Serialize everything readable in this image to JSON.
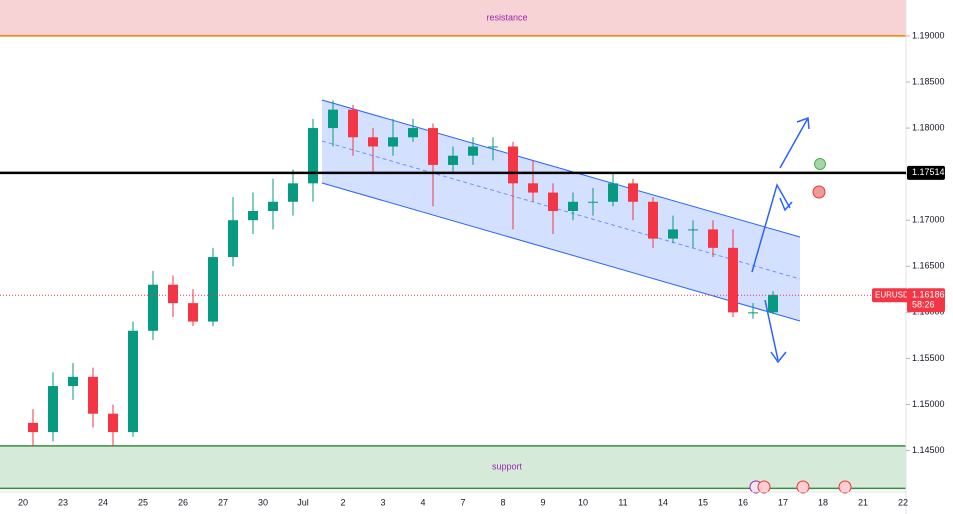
{
  "chart_data": {
    "type": "candlestick",
    "symbol": "EURUSD",
    "categories": [
      "20",
      null,
      "23",
      null,
      "24",
      null,
      "25",
      null,
      "26",
      null,
      "27",
      null,
      "30",
      null,
      "Jul",
      null,
      "2",
      null,
      "3",
      null,
      "4",
      null,
      "7",
      null,
      "8",
      null,
      "9",
      null,
      "10",
      null,
      "11",
      null,
      "14",
      null,
      "15",
      null,
      "16",
      null,
      "17",
      null,
      "18",
      null,
      "21",
      null,
      "22",
      null
    ],
    "open": [
      1.148,
      1.147,
      1.152,
      1.153,
      1.149,
      1.147,
      1.158,
      1.163,
      1.161,
      1.159,
      1.166,
      1.17,
      1.171,
      1.172,
      1.174,
      1.18,
      1.182,
      1.179,
      1.178,
      1.179,
      1.18,
      1.176,
      1.177,
      1.178,
      1.178,
      1.174,
      1.173,
      1.171,
      1.172,
      1.172,
      1.174,
      1.172,
      1.168,
      1.169,
      1.169,
      1.167,
      1.16,
      1.16,
      null,
      null,
      null,
      null,
      null,
      null,
      null,
      null
    ],
    "high": [
      1.1495,
      1.1535,
      1.1545,
      1.154,
      1.15,
      1.159,
      1.1645,
      1.164,
      1.1625,
      1.167,
      1.1725,
      1.173,
      1.1745,
      1.1755,
      1.181,
      1.183,
      1.1825,
      1.18,
      1.181,
      1.181,
      1.1805,
      1.178,
      1.179,
      1.179,
      1.1785,
      1.1765,
      1.174,
      1.173,
      1.1735,
      1.175,
      1.1745,
      1.1725,
      1.1705,
      1.17,
      1.17,
      1.169,
      1.161,
      1.1623,
      null,
      null,
      null,
      null,
      null,
      null,
      null,
      null
    ],
    "low": [
      1.1455,
      1.146,
      1.1505,
      1.1475,
      1.1455,
      1.1465,
      1.157,
      1.1595,
      1.1585,
      1.1585,
      1.165,
      1.1685,
      1.169,
      1.1705,
      1.172,
      1.178,
      1.177,
      1.175,
      1.177,
      1.1785,
      1.1715,
      1.175,
      1.176,
      1.1765,
      1.169,
      1.172,
      1.1685,
      1.17,
      1.1705,
      1.1715,
      1.17,
      1.167,
      1.1675,
      1.167,
      1.166,
      1.1595,
      1.1593,
      1.1598,
      null,
      null,
      null,
      null,
      null,
      null,
      null,
      null
    ],
    "close": [
      1.147,
      1.152,
      1.153,
      1.149,
      1.147,
      1.158,
      1.163,
      1.161,
      1.159,
      1.166,
      1.17,
      1.171,
      1.172,
      1.174,
      1.18,
      1.182,
      1.179,
      1.178,
      1.179,
      1.18,
      1.176,
      1.177,
      1.178,
      1.178,
      1.174,
      1.173,
      1.171,
      1.172,
      1.172,
      1.174,
      1.172,
      1.168,
      1.169,
      1.169,
      1.167,
      1.16,
      1.16,
      1.1619,
      null,
      null,
      null,
      null,
      null,
      null,
      null,
      null
    ],
    "up_color": "#089981",
    "down_color": "#f23645",
    "ylim": [
      1.1405,
      1.1939
    ],
    "yticks": [
      {
        "value": 1.145,
        "label": "1.14500"
      },
      {
        "value": 1.15,
        "label": "1.15000"
      },
      {
        "value": 1.155,
        "label": "1.15500"
      },
      {
        "value": 1.16,
        "label": "1.16000"
      },
      {
        "value": 1.165,
        "label": "1.16500"
      },
      {
        "value": 1.17,
        "label": "1.17000"
      },
      {
        "value": 1.175,
        "label": "1.17500"
      },
      {
        "value": 1.18,
        "label": "1.18000"
      },
      {
        "value": 1.185,
        "label": "1.18500"
      },
      {
        "value": 1.19,
        "label": "1.19000"
      }
    ],
    "zones": [
      {
        "label": "resistance",
        "low": 1.19,
        "color": "#f8d3d6",
        "line_color": "#f57c00"
      },
      {
        "label": "support",
        "low": 1.1409,
        "high": 1.1455,
        "color": "#d6ead9",
        "line_color": "#388e3c"
      }
    ],
    "level": {
      "value": 1.17514,
      "label": "1.17514"
    },
    "last_price": {
      "value": 1.16186,
      "label": "1.16186",
      "countdown": "58:26"
    }
  }
}
